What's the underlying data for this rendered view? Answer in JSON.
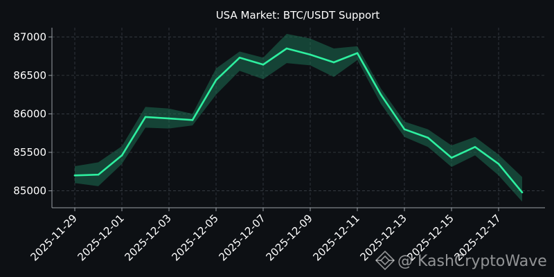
{
  "chart_data": {
    "type": "line",
    "title": "USA Market: BTC/USDT Support",
    "xlabel": "",
    "ylabel": "",
    "x": [
      "2025-11-29",
      "2025-11-30",
      "2025-12-01",
      "2025-12-02",
      "2025-12-03",
      "2025-12-04",
      "2025-12-05",
      "2025-12-06",
      "2025-12-07",
      "2025-12-08",
      "2025-12-09",
      "2025-12-10",
      "2025-12-11",
      "2025-12-12",
      "2025-12-13",
      "2025-12-14",
      "2025-12-15",
      "2025-12-16",
      "2025-12-17",
      "2025-12-18"
    ],
    "x_tick_labels": [
      "2025-11-29",
      "2025-12-01",
      "2025-12-03",
      "2025-12-05",
      "2025-12-07",
      "2025-12-09",
      "2025-12-11",
      "2025-12-13",
      "2025-12-15",
      "2025-12-17"
    ],
    "series": [
      {
        "values": [
          85200,
          85210,
          85460,
          85960,
          85940,
          85920,
          86440,
          86730,
          86640,
          86850,
          86770,
          86670,
          86790,
          86250,
          85800,
          85690,
          85430,
          85570,
          85350,
          84980
        ],
        "band_upper": [
          85320,
          85370,
          85580,
          86090,
          86070,
          86000,
          86590,
          86810,
          86730,
          87040,
          86980,
          86850,
          86880,
          86330,
          85900,
          85800,
          85590,
          85700,
          85470,
          85180
        ],
        "band_lower": [
          85100,
          85060,
          85350,
          85820,
          85810,
          85850,
          86250,
          86560,
          86450,
          86660,
          86630,
          86480,
          86700,
          86130,
          85700,
          85570,
          85310,
          85460,
          85200,
          84860
        ]
      }
    ],
    "ylim": [
      84780,
      87120
    ],
    "y_ticks": [
      85000,
      85500,
      86000,
      86500,
      87000
    ],
    "grid": true,
    "legend": "none",
    "colors": {
      "background": "#0d1014",
      "line": "#2ef0a0",
      "band": "#1e6e52",
      "grid": "#3a3f46",
      "axis": "#9aa0a6",
      "text": "#ffffff"
    }
  },
  "watermark": {
    "text": "@ KashCryptoWave",
    "icon": "diamond-logo-icon"
  }
}
